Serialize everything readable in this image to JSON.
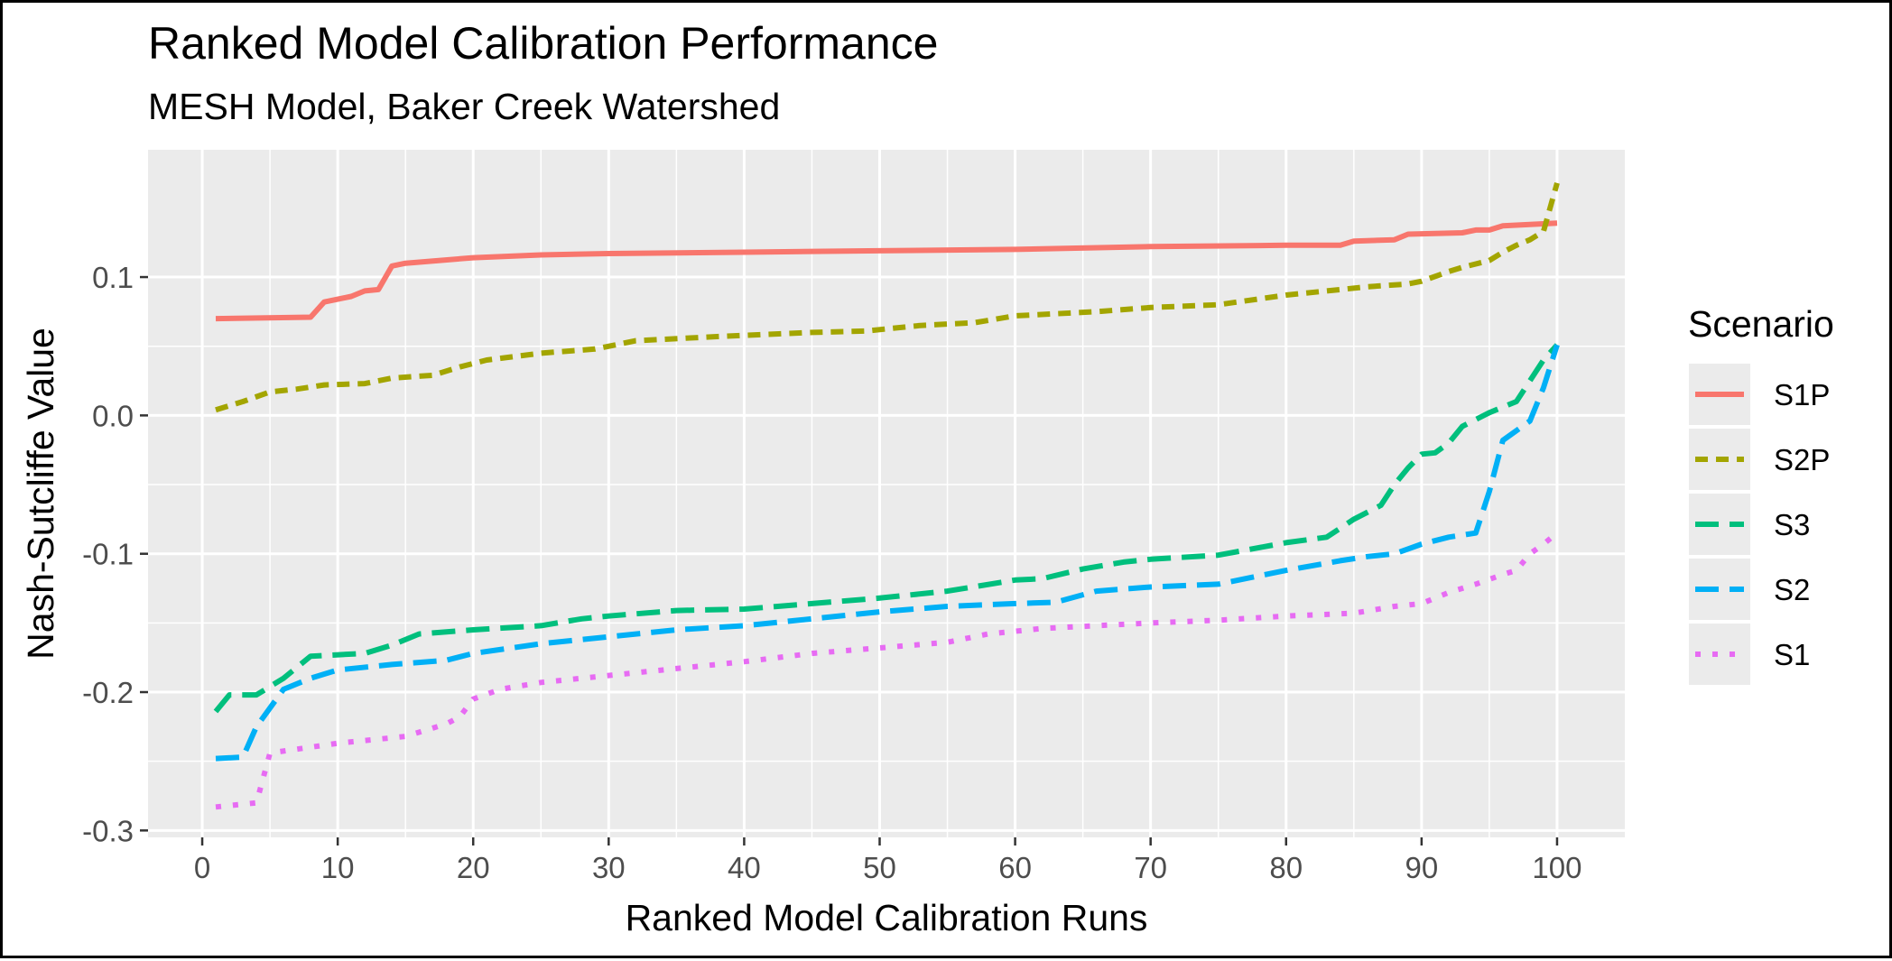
{
  "chart_data": {
    "type": "line",
    "title": "Ranked Model Calibration Performance",
    "subtitle": "MESH Model, Baker Creek Watershed",
    "xlabel": "Ranked Model Calibration Runs",
    "ylabel": "Nash-Sutcliffe Value",
    "xlim": [
      -4,
      105
    ],
    "ylim": [
      -0.305,
      0.192
    ],
    "x_ticks": [
      0,
      10,
      20,
      30,
      40,
      50,
      60,
      70,
      80,
      90,
      100
    ],
    "x_tick_labels": [
      "0",
      "10",
      "20",
      "30",
      "40",
      "50",
      "60",
      "70",
      "80",
      "90",
      "100"
    ],
    "y_ticks": [
      -0.3,
      -0.2,
      -0.1,
      0.0,
      0.1
    ],
    "y_tick_labels": [
      "-0.3",
      "-0.2",
      "-0.1",
      "0.0",
      "0.1"
    ],
    "grid": true,
    "legend_title": "Scenario",
    "legend_position": "right",
    "background": "#EBEBEB",
    "series": [
      {
        "name": "S1P",
        "color": "#F8766D",
        "dash": "solid",
        "points": [
          [
            1,
            0.07
          ],
          [
            8,
            0.071
          ],
          [
            9,
            0.082
          ],
          [
            11,
            0.086
          ],
          [
            12,
            0.09
          ],
          [
            13,
            0.091
          ],
          [
            14,
            0.108
          ],
          [
            15,
            0.11
          ],
          [
            20,
            0.114
          ],
          [
            25,
            0.116
          ],
          [
            30,
            0.117
          ],
          [
            40,
            0.118
          ],
          [
            50,
            0.119
          ],
          [
            60,
            0.12
          ],
          [
            70,
            0.122
          ],
          [
            80,
            0.123
          ],
          [
            84,
            0.123
          ],
          [
            85,
            0.126
          ],
          [
            88,
            0.127
          ],
          [
            89,
            0.131
          ],
          [
            93,
            0.132
          ],
          [
            94,
            0.134
          ],
          [
            95,
            0.134
          ],
          [
            96,
            0.137
          ],
          [
            98,
            0.138
          ],
          [
            100,
            0.139
          ]
        ]
      },
      {
        "name": "S2P",
        "color": "#A3A500",
        "dash": "short-dash",
        "points": [
          [
            1,
            0.004
          ],
          [
            3,
            0.01
          ],
          [
            5,
            0.017
          ],
          [
            7,
            0.019
          ],
          [
            9,
            0.022
          ],
          [
            12,
            0.023
          ],
          [
            14,
            0.027
          ],
          [
            17,
            0.029
          ],
          [
            19,
            0.035
          ],
          [
            21,
            0.04
          ],
          [
            25,
            0.045
          ],
          [
            29,
            0.048
          ],
          [
            32,
            0.054
          ],
          [
            38,
            0.057
          ],
          [
            45,
            0.06
          ],
          [
            49,
            0.061
          ],
          [
            53,
            0.065
          ],
          [
            57,
            0.067
          ],
          [
            60,
            0.072
          ],
          [
            66,
            0.075
          ],
          [
            70,
            0.078
          ],
          [
            75,
            0.08
          ],
          [
            80,
            0.087
          ],
          [
            84,
            0.091
          ],
          [
            86,
            0.093
          ],
          [
            89,
            0.095
          ],
          [
            90,
            0.097
          ],
          [
            92,
            0.104
          ],
          [
            93,
            0.107
          ],
          [
            95,
            0.112
          ],
          [
            96,
            0.118
          ],
          [
            97,
            0.123
          ],
          [
            98,
            0.127
          ],
          [
            99,
            0.133
          ],
          [
            100,
            0.168
          ]
        ]
      },
      {
        "name": "S3",
        "color": "#00BF7D",
        "dash": "long-dash",
        "points": [
          [
            1,
            -0.214
          ],
          [
            2,
            -0.202
          ],
          [
            4,
            -0.202
          ],
          [
            6,
            -0.19
          ],
          [
            8,
            -0.174
          ],
          [
            12,
            -0.172
          ],
          [
            14,
            -0.166
          ],
          [
            16,
            -0.158
          ],
          [
            20,
            -0.155
          ],
          [
            25,
            -0.152
          ],
          [
            28,
            -0.147
          ],
          [
            30,
            -0.145
          ],
          [
            35,
            -0.141
          ],
          [
            40,
            -0.14
          ],
          [
            45,
            -0.136
          ],
          [
            50,
            -0.132
          ],
          [
            55,
            -0.127
          ],
          [
            60,
            -0.119
          ],
          [
            62,
            -0.118
          ],
          [
            65,
            -0.111
          ],
          [
            68,
            -0.106
          ],
          [
            70,
            -0.104
          ],
          [
            75,
            -0.101
          ],
          [
            80,
            -0.092
          ],
          [
            83,
            -0.088
          ],
          [
            85,
            -0.075
          ],
          [
            87,
            -0.065
          ],
          [
            88,
            -0.05
          ],
          [
            89,
            -0.038
          ],
          [
            90,
            -0.028
          ],
          [
            91,
            -0.027
          ],
          [
            92,
            -0.02
          ],
          [
            93,
            -0.008
          ],
          [
            95,
            0.002
          ],
          [
            97,
            0.01
          ],
          [
            99,
            0.04
          ],
          [
            100,
            0.051
          ]
        ]
      },
      {
        "name": "S2",
        "color": "#00B0F6",
        "dash": "long-dash",
        "points": [
          [
            1,
            -0.248
          ],
          [
            3,
            -0.247
          ],
          [
            4,
            -0.225
          ],
          [
            6,
            -0.198
          ],
          [
            8,
            -0.19
          ],
          [
            10,
            -0.184
          ],
          [
            14,
            -0.18
          ],
          [
            18,
            -0.177
          ],
          [
            20,
            -0.172
          ],
          [
            25,
            -0.165
          ],
          [
            30,
            -0.16
          ],
          [
            35,
            -0.155
          ],
          [
            40,
            -0.152
          ],
          [
            45,
            -0.147
          ],
          [
            50,
            -0.142
          ],
          [
            55,
            -0.138
          ],
          [
            60,
            -0.136
          ],
          [
            63,
            -0.135
          ],
          [
            66,
            -0.127
          ],
          [
            70,
            -0.124
          ],
          [
            75,
            -0.122
          ],
          [
            80,
            -0.112
          ],
          [
            84,
            -0.105
          ],
          [
            86,
            -0.102
          ],
          [
            88,
            -0.1
          ],
          [
            90,
            -0.093
          ],
          [
            92,
            -0.088
          ],
          [
            94,
            -0.085
          ],
          [
            95,
            -0.055
          ],
          [
            96,
            -0.018
          ],
          [
            98,
            -0.004
          ],
          [
            99,
            0.02
          ],
          [
            100,
            0.051
          ]
        ]
      },
      {
        "name": "S1",
        "color": "#E76BF3",
        "dash": "dotted",
        "points": [
          [
            1,
            -0.283
          ],
          [
            4,
            -0.28
          ],
          [
            5,
            -0.244
          ],
          [
            10,
            -0.237
          ],
          [
            15,
            -0.232
          ],
          [
            18,
            -0.223
          ],
          [
            19,
            -0.218
          ],
          [
            20,
            -0.205
          ],
          [
            22,
            -0.198
          ],
          [
            25,
            -0.193
          ],
          [
            30,
            -0.188
          ],
          [
            35,
            -0.183
          ],
          [
            40,
            -0.178
          ],
          [
            45,
            -0.172
          ],
          [
            50,
            -0.168
          ],
          [
            55,
            -0.164
          ],
          [
            58,
            -0.158
          ],
          [
            62,
            -0.154
          ],
          [
            66,
            -0.152
          ],
          [
            70,
            -0.15
          ],
          [
            75,
            -0.148
          ],
          [
            80,
            -0.145
          ],
          [
            85,
            -0.143
          ],
          [
            88,
            -0.138
          ],
          [
            90,
            -0.136
          ],
          [
            92,
            -0.128
          ],
          [
            94,
            -0.122
          ],
          [
            96,
            -0.115
          ],
          [
            97,
            -0.112
          ],
          [
            98,
            -0.1
          ],
          [
            99,
            -0.093
          ],
          [
            100,
            -0.085
          ]
        ]
      }
    ]
  }
}
